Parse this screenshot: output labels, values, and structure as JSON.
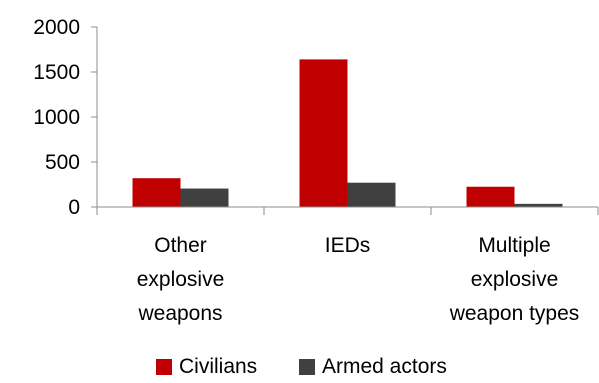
{
  "chart_data": {
    "type": "bar",
    "categories": [
      [
        "Other",
        "explosive",
        "weapons"
      ],
      [
        "IEDs"
      ],
      [
        "Multiple",
        "explosive",
        "weapon types"
      ]
    ],
    "series": [
      {
        "name": "Civilians",
        "color": "#c00000",
        "values": [
          320,
          1640,
          225
        ]
      },
      {
        "name": "Armed actors",
        "color": "#404040",
        "values": [
          205,
          270,
          35
        ]
      }
    ],
    "y_ticks": [
      "0",
      "500",
      "1000",
      "1500",
      "2000"
    ],
    "ylim": [
      0,
      2000
    ],
    "grid": false,
    "legend_position": "bottom"
  }
}
